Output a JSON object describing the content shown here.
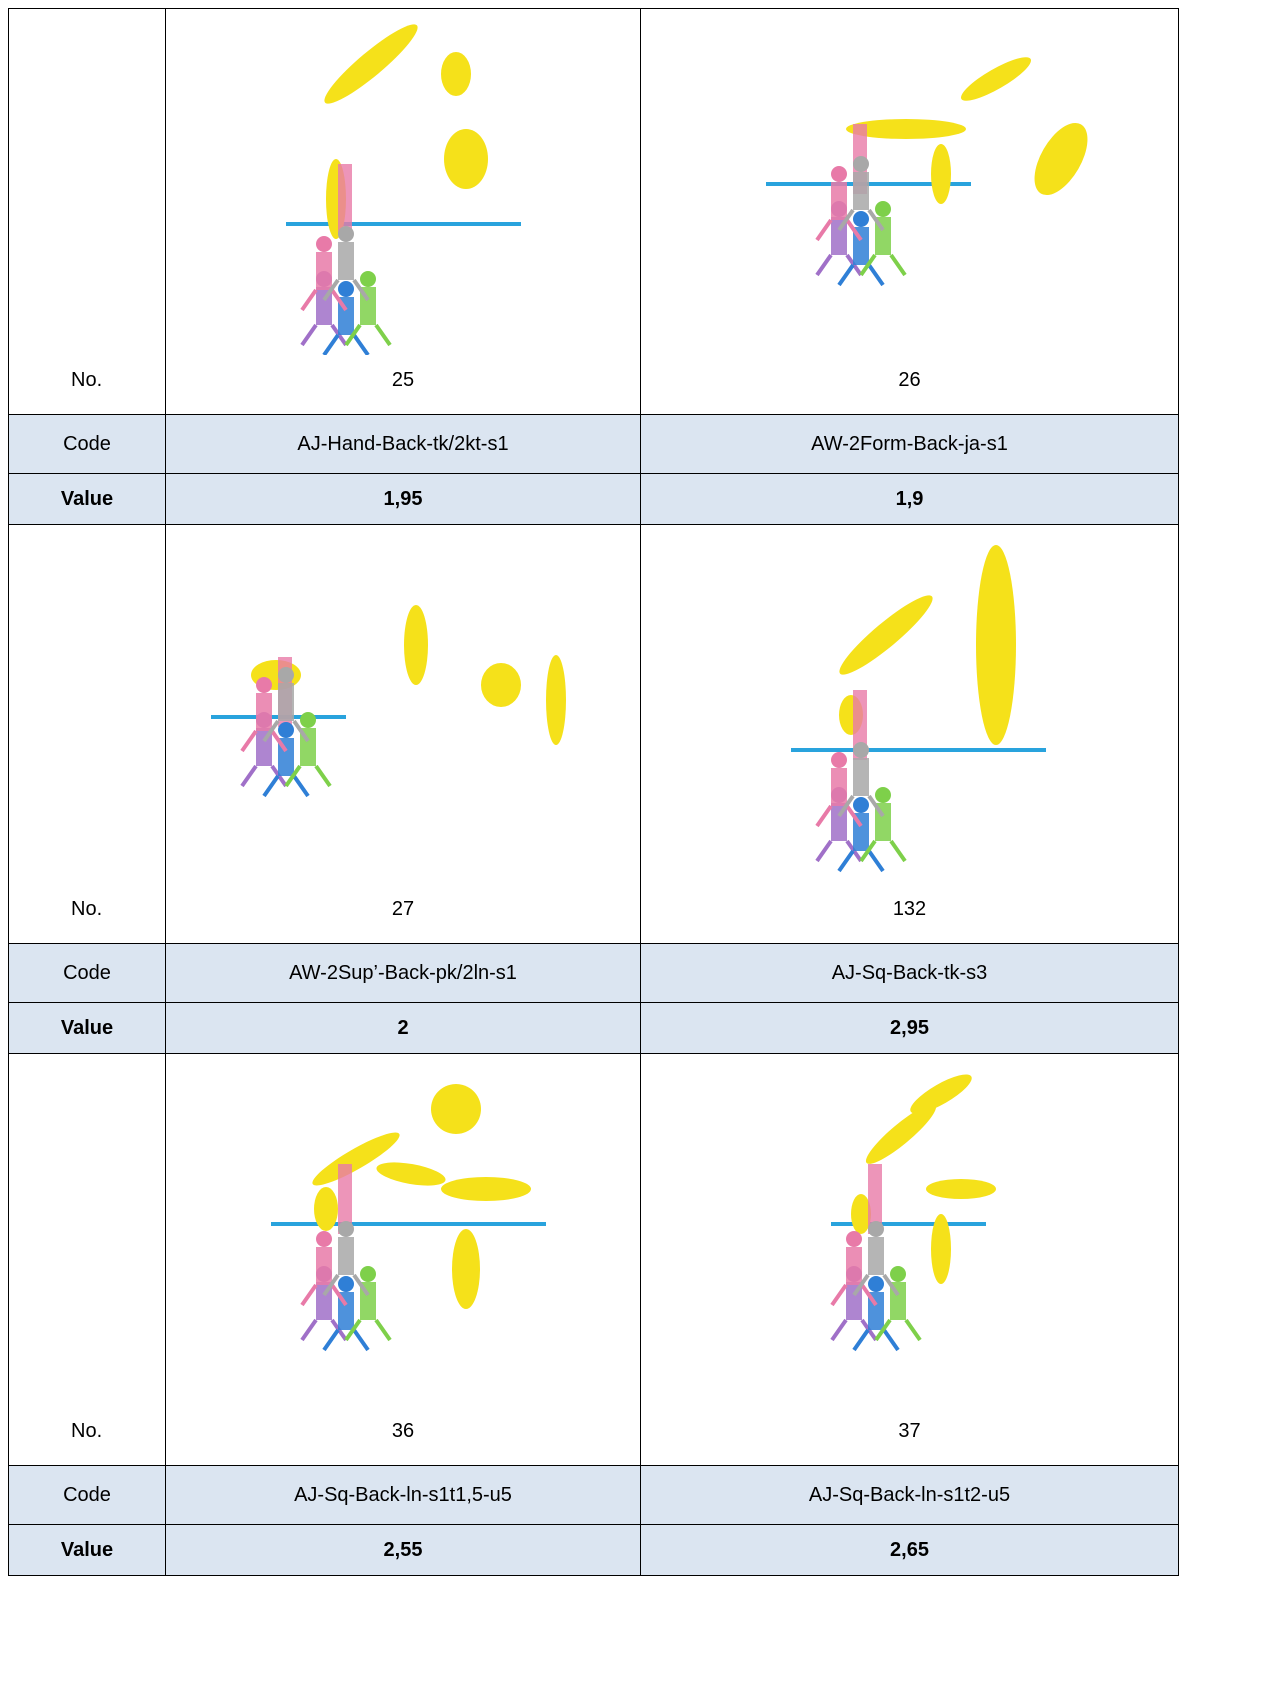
{
  "table": {
    "row_labels": {
      "no": "No.",
      "code": "Code",
      "value": "Value"
    },
    "blocks": [
      {
        "cells": [
          {
            "no": "25",
            "code": "AJ-Hand-Back-tk/2kt-s1",
            "value": "1,95"
          },
          {
            "no": "26",
            "code": "AW-2Form-Back-ja-s1",
            "value": "1,9"
          }
        ]
      },
      {
        "cells": [
          {
            "no": "27",
            "code": "AW-2Sup’-Back-pk/2ln-s1",
            "value": "2"
          },
          {
            "no": "132",
            "code": "AJ-Sq-Back-tk-s3",
            "value": "2,95"
          }
        ]
      },
      {
        "cells": [
          {
            "no": "36",
            "code": "AJ-Sq-Back-ln-s1t1,5-u5",
            "value": "2,55"
          },
          {
            "no": "37",
            "code": "AJ-Sq-Back-ln-s1t2-u5",
            "value": "2,65"
          }
        ]
      }
    ]
  }
}
